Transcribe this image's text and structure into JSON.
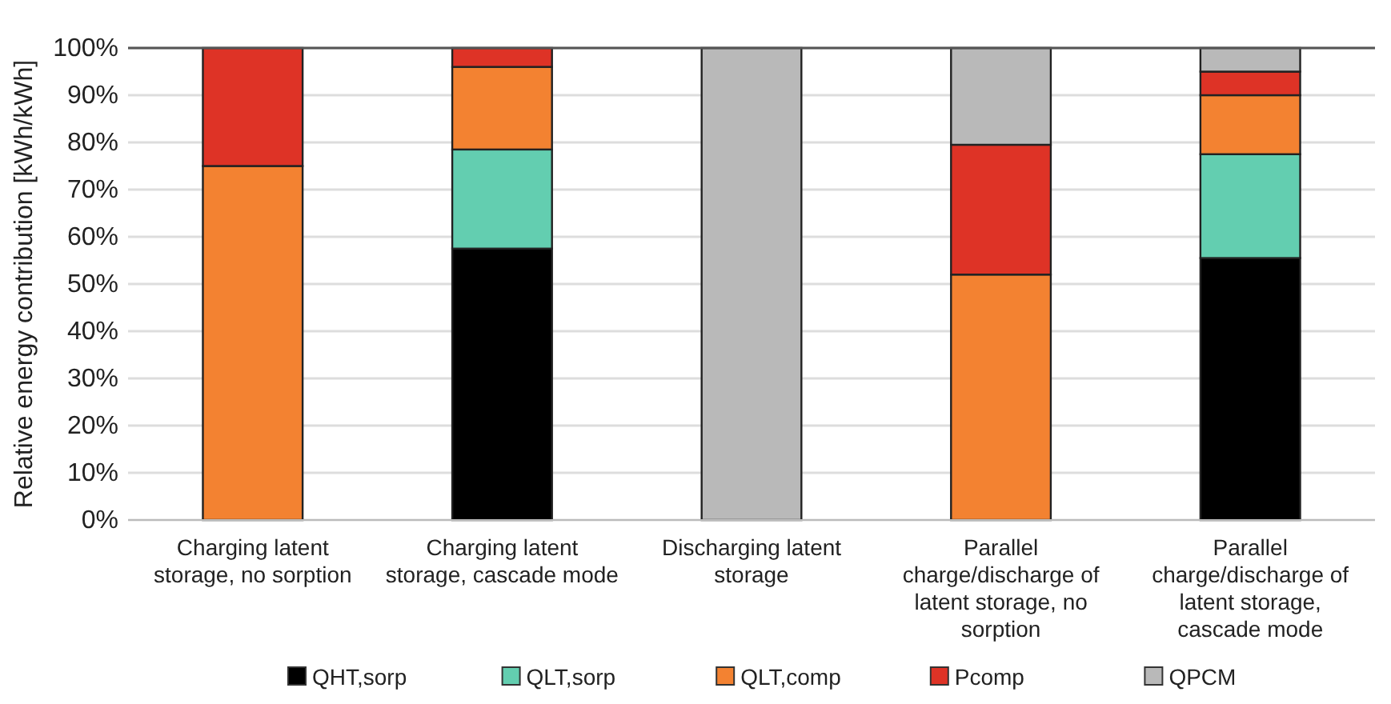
{
  "chart_data": {
    "type": "bar",
    "stacked": true,
    "ylabel": "Relative energy contribution [kWh/kWh]",
    "categories": [
      "Charging latent storage, no sorption",
      "Charging latent storage, cascade mode",
      "Discharging latent storage",
      "Parallel charge/discharge of latent storage, no sorption",
      "Parallel charge/discharge of latent storage, cascade mode"
    ],
    "series": [
      {
        "name": "QHT,sorp",
        "color": "#000000",
        "values": [
          0,
          57.5,
          0,
          0,
          55.5
        ]
      },
      {
        "name": "QLT,sorp",
        "color": "#63ceb0",
        "values": [
          0,
          21,
          0,
          0,
          22
        ]
      },
      {
        "name": "QLT,comp",
        "color": "#f38231",
        "values": [
          75,
          17.5,
          0,
          52,
          12.5
        ]
      },
      {
        "name": "Pcomp",
        "color": "#de3326",
        "values": [
          25,
          4,
          0,
          27.5,
          5
        ]
      },
      {
        "name": "QPCM",
        "color": "#b9b9b9",
        "values": [
          0,
          0,
          100,
          20.5,
          5
        ]
      }
    ],
    "ylim": [
      0,
      100
    ],
    "yticks": [
      {
        "value": 0,
        "label": "0%"
      },
      {
        "value": 10,
        "label": "10%"
      },
      {
        "value": 20,
        "label": "20%"
      },
      {
        "value": 30,
        "label": "30%"
      },
      {
        "value": 40,
        "label": "40%"
      },
      {
        "value": 50,
        "label": "50%"
      },
      {
        "value": 60,
        "label": "60%"
      },
      {
        "value": 70,
        "label": "70%"
      },
      {
        "value": 80,
        "label": "80%"
      },
      {
        "value": 90,
        "label": "90%"
      },
      {
        "value": 100,
        "label": "100%"
      }
    ],
    "grid": "y",
    "legend": "bottom"
  }
}
